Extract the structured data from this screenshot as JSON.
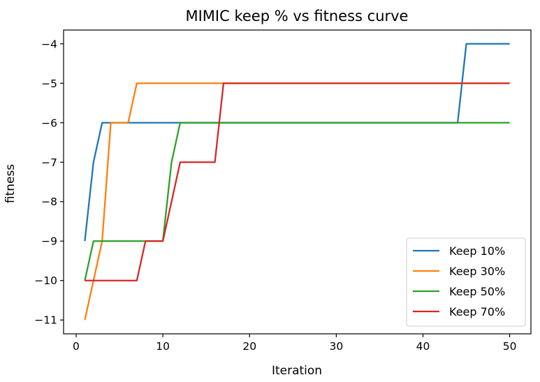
{
  "chart_data": {
    "type": "line",
    "title": "MIMIC keep % vs fitness curve",
    "xlabel": "Iteration",
    "ylabel": "fitness",
    "xlim": [
      -1.45,
      52.45
    ],
    "ylim": [
      -11.35,
      -3.65
    ],
    "xticks": [
      0,
      10,
      20,
      30,
      40,
      50
    ],
    "yticks": [
      -11,
      -10,
      -9,
      -8,
      -7,
      -6,
      -5,
      -4
    ],
    "grid": false,
    "legend": "bottom-right",
    "series": [
      {
        "name": "Keep 10%",
        "color": "#1f77b4",
        "points": [
          [
            1,
            -9
          ],
          [
            2,
            -7
          ],
          [
            3,
            -6
          ],
          [
            44,
            -6
          ],
          [
            45,
            -4
          ],
          [
            50,
            -4
          ]
        ]
      },
      {
        "name": "Keep 30%",
        "color": "#ff7f0e",
        "points": [
          [
            1,
            -11
          ],
          [
            2,
            -10
          ],
          [
            3,
            -9
          ],
          [
            4,
            -6
          ],
          [
            6,
            -6
          ],
          [
            7,
            -5
          ],
          [
            50,
            -5
          ]
        ]
      },
      {
        "name": "Keep 50%",
        "color": "#2ca02c",
        "points": [
          [
            1,
            -10
          ],
          [
            2,
            -9
          ],
          [
            10,
            -9
          ],
          [
            11,
            -7
          ],
          [
            12,
            -6
          ],
          [
            50,
            -6
          ]
        ]
      },
      {
        "name": "Keep 70%",
        "color": "#d62728",
        "points": [
          [
            1,
            -10
          ],
          [
            7,
            -10
          ],
          [
            8,
            -9
          ],
          [
            10,
            -9
          ],
          [
            12,
            -7
          ],
          [
            16,
            -7
          ],
          [
            17,
            -5
          ],
          [
            50,
            -5
          ]
        ]
      }
    ]
  }
}
